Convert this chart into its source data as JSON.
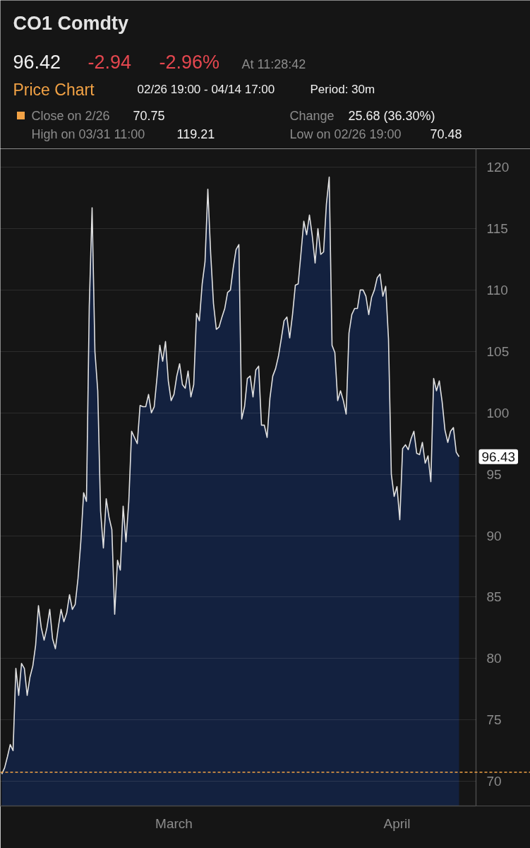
{
  "chart_data": {
    "type": "area",
    "title": "CO1 Comdty",
    "subtitle": "Price Chart",
    "annotations": [
      "96.42",
      "-2.94",
      "-2.96%",
      "At 11:28:42",
      "02/26 19:00 - 04/14 17:00",
      "Period: 30m",
      "70.75",
      "Change",
      "25.68 (36.30%)",
      "High on 03/31 11:00",
      "119.21",
      "Low on 02/26 19:00",
      "70.48",
      "96.43"
    ],
    "categories": [
      null,
      null,
      null,
      null,
      null,
      null,
      null,
      null,
      null,
      null,
      null,
      null,
      null,
      null,
      null,
      null,
      null,
      null,
      null,
      null,
      null,
      null,
      null,
      null,
      null,
      null,
      null,
      null,
      null,
      null,
      null,
      null,
      null,
      null,
      null,
      null,
      null,
      null,
      null,
      null,
      null,
      null,
      null,
      null,
      null,
      null,
      null,
      null,
      null,
      null,
      null,
      null,
      null,
      null,
      null,
      null,
      null,
      null,
      null,
      null,
      null,
      "March",
      null,
      null,
      null,
      null,
      null,
      null,
      null,
      null,
      null,
      null,
      null,
      null,
      null,
      null,
      null,
      null,
      null,
      null,
      null,
      null,
      null,
      null,
      null,
      null,
      null,
      null,
      null,
      null,
      null,
      null,
      null,
      null,
      null,
      null,
      null,
      null,
      null,
      null,
      null,
      null,
      null,
      null,
      null,
      null,
      null,
      null,
      null,
      null,
      null,
      null,
      null,
      null,
      null,
      null,
      null,
      null,
      null,
      null,
      null,
      null,
      null,
      null,
      null,
      null,
      null,
      null,
      null,
      null,
      null,
      null,
      null,
      null,
      null,
      null,
      null,
      null,
      null,
      null,
      "April",
      null,
      null,
      null,
      null,
      null,
      null,
      null,
      null,
      null,
      null,
      null,
      null,
      null,
      null,
      null,
      null,
      null,
      null,
      null,
      null,
      null,
      null
    ],
    "color": "#13213f",
    "values": [
      70.6,
      71.1,
      72.0,
      73.0,
      72.5,
      79.2,
      77.0,
      79.6,
      79.2,
      77.0,
      78.5,
      79.4,
      81.1,
      84.3,
      82.5,
      81.5,
      82.5,
      84.0,
      81.6,
      80.8,
      82.5,
      84.0,
      83.0,
      83.7,
      85.2,
      84.0,
      84.4,
      86.5,
      89.5,
      93.5,
      92.8,
      108.7,
      116.7,
      105.0,
      101.8,
      92.0,
      89.0,
      93.0,
      91.5,
      90.5,
      83.6,
      88.0,
      87.2,
      92.4,
      89.5,
      92.8,
      98.5,
      98.0,
      97.5,
      100.6,
      100.5,
      100.5,
      101.5,
      100.0,
      100.5,
      102.9,
      105.5,
      104.2,
      105.8,
      102.6,
      101.0,
      101.5,
      103.0,
      104.0,
      102.3,
      102.0,
      103.4,
      101.3,
      102.3,
      108.1,
      107.5,
      110.5,
      112.3,
      118.2,
      113.0,
      108.9,
      106.8,
      107.0,
      107.8,
      108.5,
      109.8,
      110.0,
      111.8,
      113.3,
      113.7,
      99.5,
      100.5,
      102.8,
      103.0,
      101.3,
      103.5,
      103.8,
      99.0,
      99.0,
      98.0,
      101.2,
      103.0,
      103.6,
      104.6,
      106.0,
      107.5,
      107.8,
      106.1,
      108.0,
      110.4,
      110.5,
      113.0,
      115.6,
      114.5,
      116.1,
      114.4,
      112.2,
      115.0,
      112.9,
      113.1,
      117.0,
      119.2,
      105.5,
      104.9,
      101.0,
      101.8,
      101.0,
      99.9,
      106.5,
      108.0,
      108.5,
      108.5,
      110.0,
      110.0,
      109.5,
      108.0,
      109.4,
      110.0,
      111.0,
      111.3,
      109.5,
      110.3,
      106.0,
      95.0,
      93.2,
      94.0,
      91.3,
      97.1,
      97.4,
      97.0,
      97.9,
      98.5,
      96.7,
      96.6,
      97.6,
      95.9,
      96.5,
      94.4,
      102.8,
      101.8,
      102.6,
      100.9,
      98.6,
      97.6,
      98.5,
      98.8,
      96.8,
      96.43
    ],
    "ylim": [
      68,
      121.5
    ],
    "yticks": [
      70,
      75,
      80,
      85,
      90,
      95,
      100,
      105,
      110,
      115,
      120
    ],
    "grid": "y",
    "ref_lines": [
      {
        "axis": "y",
        "value": 70.75,
        "label": "Close on 2/26",
        "color": "#f2a245",
        "line_style": "dashed"
      }
    ]
  }
}
